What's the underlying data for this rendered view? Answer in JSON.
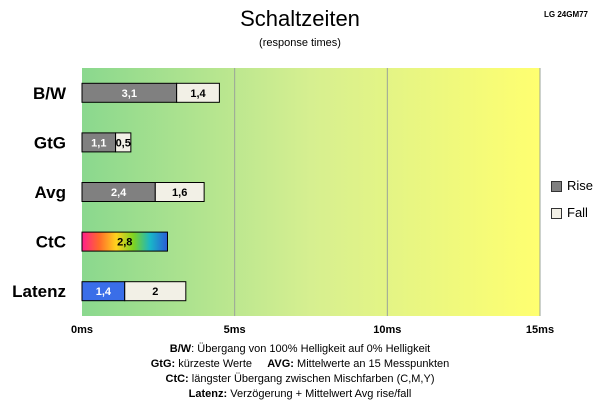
{
  "header": {
    "title": "Schaltzeiten",
    "subtitle": "(response times)",
    "model": "LG 24GM77"
  },
  "chart_data": {
    "type": "bar",
    "orientation": "horizontal",
    "stacked": true,
    "categories": [
      "B/W",
      "GtG",
      "Avg",
      "CtC",
      "Latenz"
    ],
    "series": [
      {
        "name": "Rise",
        "values": [
          3.1,
          1.1,
          2.4,
          2.8,
          1.4
        ],
        "labels": [
          "3,1",
          "1,1",
          "2,4",
          "2,8",
          "1,4"
        ],
        "color": "#808080"
      },
      {
        "name": "Fall",
        "values": [
          1.4,
          0.5,
          1.6,
          0,
          2
        ],
        "labels": [
          "1,4",
          "0,5",
          "1,6",
          "",
          "2"
        ],
        "color": "#f2f0e6"
      }
    ],
    "special_colors": {
      "CtC": "rainbow",
      "Latenz": "#3a6ee8"
    },
    "xlim": [
      0,
      15
    ],
    "xticks": [
      0,
      5,
      10,
      15
    ],
    "xtick_labels": [
      "0ms",
      "5ms",
      "10ms",
      "15ms"
    ],
    "background": {
      "start": "#8ad88e",
      "mid": "#d6ef90",
      "end": "#ffff70"
    },
    "grid": true,
    "legend": "right"
  },
  "legend": [
    {
      "label": "Rise",
      "color": "#808080"
    },
    {
      "label": "Fall",
      "color": "#f2f0e6"
    }
  ],
  "notes": [
    {
      "key": "B/W",
      "text": ":  Übergang von 100% Helligkeit auf 0% Helligkeit"
    },
    {
      "key": "GtG:",
      "text": " kürzeste  Werte",
      "key2": "AVG:",
      "text2": " Mittelwerte  an 15 Messpunkten"
    },
    {
      "key": "CtC:",
      "text": " längster Übergang  zwischen Mischfarben  (C,M,Y)"
    },
    {
      "key": "Latenz:",
      "text": " Verzögerung  + Mittelwert  Avg rise/fall"
    }
  ]
}
